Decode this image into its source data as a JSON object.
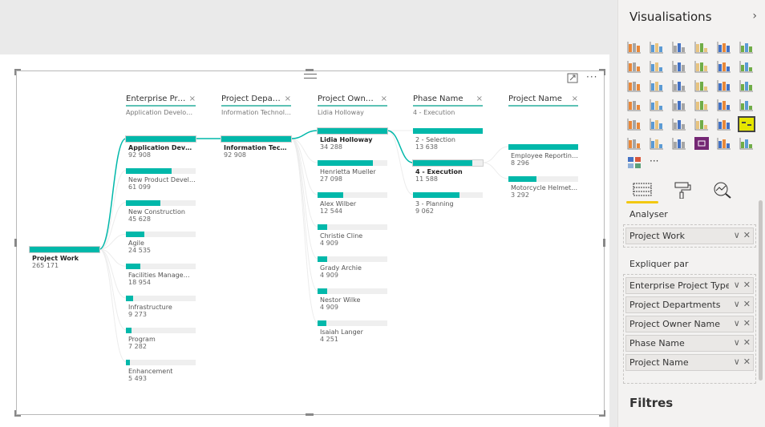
{
  "visual": {
    "more_label": "···",
    "focus_icon": "focus-mode-icon"
  },
  "tree": {
    "accent": "#01b8aa",
    "root": {
      "label": "Project Work",
      "value": "265 171",
      "num": 265171
    },
    "columns": [
      {
        "header": "Enterprise Proje...",
        "subtitle": "Application Developm...",
        "nodes": [
          {
            "label": "Application Develop...",
            "value": "92 908",
            "num": 92908,
            "selected": true
          },
          {
            "label": "New Product Develop...",
            "value": "61 099",
            "num": 61099
          },
          {
            "label": "New Construction",
            "value": "45 628",
            "num": 45628
          },
          {
            "label": "Agile",
            "value": "24 535",
            "num": 24535
          },
          {
            "label": "Facilities Management",
            "value": "18 954",
            "num": 18954
          },
          {
            "label": "Infrastructure",
            "value": "9 273",
            "num": 9273
          },
          {
            "label": "Program",
            "value": "7 282",
            "num": 7282
          },
          {
            "label": "Enhancement",
            "value": "5 493",
            "num": 5493
          }
        ]
      },
      {
        "header": "Project Departm...",
        "subtitle": "Information Technology",
        "nodes": [
          {
            "label": "Information Technol...",
            "value": "92 908",
            "num": 92908,
            "selected": true
          }
        ]
      },
      {
        "header": "Project Owner N...",
        "subtitle": "Lidia Holloway",
        "nodes": [
          {
            "label": "Lidia Holloway",
            "value": "34 288",
            "num": 34288,
            "selected": true
          },
          {
            "label": "Henrietta Mueller",
            "value": "27 098",
            "num": 27098
          },
          {
            "label": "Alex Wilber",
            "value": "12 544",
            "num": 12544
          },
          {
            "label": "Christie Cline",
            "value": "4 909",
            "num": 4909
          },
          {
            "label": "Grady Archie",
            "value": "4 909",
            "num": 4909
          },
          {
            "label": "Nestor Wilke",
            "value": "4 909",
            "num": 4909
          },
          {
            "label": "Isaiah Langer",
            "value": "4 251",
            "num": 4251
          }
        ]
      },
      {
        "header": "Phase Name",
        "subtitle": "4 - Execution",
        "nodes": [
          {
            "label": "2 - Selection",
            "value": "13 638",
            "num": 13638
          },
          {
            "label": "4 - Execution",
            "value": "11 588",
            "num": 11588,
            "selected": true
          },
          {
            "label": "3 - Planning",
            "value": "9 062",
            "num": 9062
          }
        ]
      },
      {
        "header": "Project Name",
        "subtitle": "",
        "nodes": [
          {
            "label": "Employee Reporting P...",
            "value": "8 296",
            "num": 8296
          },
          {
            "label": "Motorcycle Helmet wit...",
            "value": "3 292",
            "num": 3292
          }
        ]
      }
    ],
    "close_label": "×"
  },
  "pane": {
    "title": "Visualisations",
    "collapse": "›",
    "analyse_label": "Analyser",
    "analyse_fields": [
      "Project Work"
    ],
    "explain_label": "Expliquer par",
    "explain_fields": [
      "Enterprise Project Type",
      "Project Departments",
      "Project Owner Name",
      "Phase Name",
      "Project Name"
    ],
    "filters_label": "Filtres",
    "more_visuals": "···",
    "chevron": "∨",
    "remove": "✕"
  }
}
